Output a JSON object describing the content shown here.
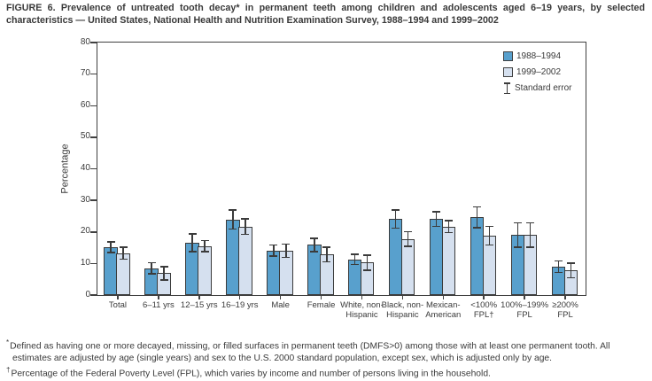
{
  "figure": {
    "title": "FIGURE 6. Prevalence of untreated tooth decay* in permanent teeth among children and adolescents aged 6–19 years, by selected characteristics — United States, National Health and Nutrition Examination Survey, 1988–1994 and 1999–2002"
  },
  "chart_data": {
    "type": "bar",
    "title": "",
    "xlabel": "",
    "ylabel": "Percentage",
    "ylim": [
      0,
      80
    ],
    "ytick_step": 10,
    "grid": false,
    "legend_position": "top-right inside plot",
    "legend_se_label": "Standard error",
    "axis_color": "#404040",
    "categories": [
      "Total",
      "6–11 yrs",
      "12–15 yrs",
      "16–19 yrs",
      "Male",
      "Female",
      "White, non-\nHispanic",
      "Black, non-\nHispanic",
      "Mexican-\nAmerican",
      "<100%\nFPL†",
      "100%–199%\nFPL",
      "≥200%\nFPL"
    ],
    "series": [
      {
        "name": "1988–1994",
        "color": "#58a0cd",
        "values": [
          15.2,
          8.5,
          16.6,
          23.9,
          14.1,
          15.9,
          11.3,
          24.1,
          24.1,
          24.6,
          19.0,
          9.0
        ],
        "standard_errors": [
          1.7,
          1.7,
          2.8,
          3.0,
          1.7,
          2.1,
          1.6,
          2.9,
          2.3,
          3.3,
          3.9,
          1.8
        ]
      },
      {
        "name": "1999–2002",
        "color": "#d5e0ef",
        "values": [
          13.3,
          6.9,
          15.5,
          21.7,
          14.0,
          12.8,
          10.3,
          17.8,
          21.7,
          18.8,
          19.0,
          7.8
        ],
        "standard_errors": [
          1.9,
          2.1,
          1.8,
          2.5,
          2.1,
          2.3,
          2.4,
          2.3,
          1.9,
          3.0,
          3.9,
          2.3
        ]
      }
    ]
  },
  "footnotes": [
    {
      "marker": "*",
      "text": "Defined as having one or more decayed, missing, or filled surfaces in permanent teeth (DMFS>0) among those with at least one permanent tooth. All estimates are adjusted by age (single years) and sex to the U.S. 2000 standard population, except sex, which is adjusted only by age."
    },
    {
      "marker": "†",
      "text": "Percentage of the Federal Poverty Level (FPL), which varies by income and number of persons living in the household."
    }
  ]
}
